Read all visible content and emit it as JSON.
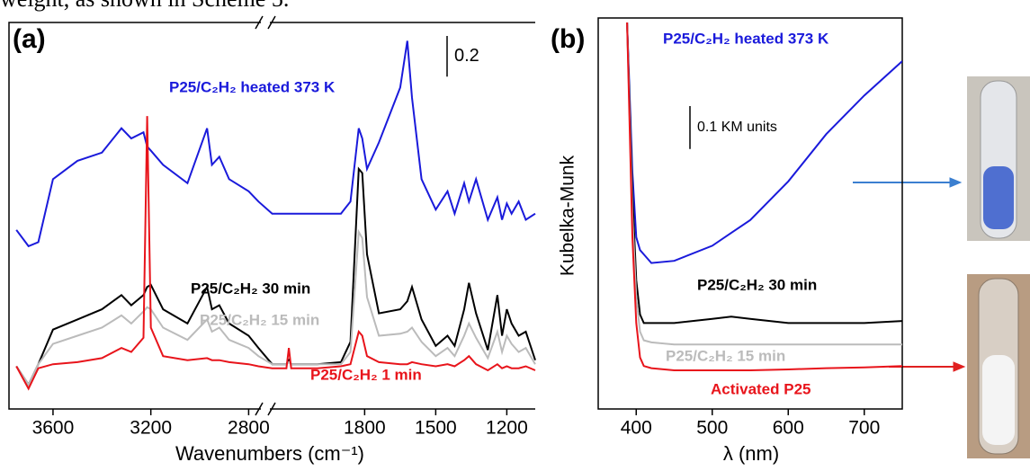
{
  "caption_fragment": "weight, as shown in Scheme 5.",
  "chart_data": [
    {
      "type": "line",
      "panel_label": "(a)",
      "x_label": "Wavenumbers (cm⁻¹)",
      "xlim": [
        3780,
        1080
      ],
      "axis_break": [
        2750,
        2200
      ],
      "ylim": [
        0,
        1.9
      ],
      "xticks": [
        3600,
        3200,
        2800,
        1800,
        1500,
        1200
      ],
      "scale_bar": 0.2,
      "x": [
        3750,
        3700,
        3660,
        3600,
        3500,
        3400,
        3320,
        3280,
        3230,
        3215,
        3200,
        3150,
        3050,
        2970,
        2950,
        2920,
        2880,
        2800,
        2760,
        2190,
        2130,
        2120,
        2110,
        2000,
        1900,
        1860,
        1825,
        1810,
        1790,
        1740,
        1650,
        1620,
        1600,
        1560,
        1500,
        1450,
        1420,
        1380,
        1360,
        1330,
        1280,
        1240,
        1220,
        1200,
        1180,
        1150,
        1120,
        1080
      ],
      "series": [
        {
          "name": "P25/C₂H₂ heated 373 K",
          "color": "#1a1adb",
          "values": [
            0.88,
            0.8,
            0.82,
            1.13,
            1.22,
            1.26,
            1.38,
            1.33,
            1.36,
            1.29,
            1.27,
            1.2,
            1.11,
            1.38,
            1.2,
            1.24,
            1.13,
            1.07,
            1.02,
            0.96,
            0.96,
            0.96,
            0.96,
            0.96,
            0.96,
            1.02,
            1.38,
            1.33,
            1.18,
            1.31,
            1.58,
            1.81,
            1.53,
            1.13,
            0.98,
            1.07,
            0.96,
            1.11,
            1.02,
            1.13,
            0.93,
            1.04,
            0.93,
            1.01,
            0.96,
            1.02,
            0.93,
            0.96
          ]
        },
        {
          "name": "P25/C₂H₂ 30 min",
          "color": "#000000",
          "values": [
            0.21,
            0.12,
            0.22,
            0.39,
            0.44,
            0.49,
            0.56,
            0.51,
            0.56,
            0.6,
            0.61,
            0.49,
            0.42,
            0.6,
            0.49,
            0.51,
            0.42,
            0.36,
            0.3,
            0.22,
            0.22,
            0.24,
            0.22,
            0.22,
            0.23,
            0.33,
            1.18,
            1.16,
            0.76,
            0.47,
            0.49,
            0.53,
            0.6,
            0.44,
            0.31,
            0.36,
            0.31,
            0.49,
            0.62,
            0.47,
            0.29,
            0.56,
            0.36,
            0.49,
            0.42,
            0.36,
            0.38,
            0.24
          ]
        },
        {
          "name": "P25/C₂H₂ 15 min",
          "color": "#bbbbbb",
          "values": [
            0.21,
            0.12,
            0.22,
            0.32,
            0.36,
            0.4,
            0.46,
            0.42,
            0.48,
            0.5,
            0.49,
            0.4,
            0.34,
            0.44,
            0.38,
            0.4,
            0.34,
            0.3,
            0.26,
            0.22,
            0.22,
            0.23,
            0.22,
            0.22,
            0.22,
            0.28,
            0.87,
            0.84,
            0.55,
            0.36,
            0.37,
            0.38,
            0.4,
            0.33,
            0.26,
            0.3,
            0.26,
            0.36,
            0.42,
            0.35,
            0.25,
            0.38,
            0.28,
            0.36,
            0.32,
            0.28,
            0.3,
            0.22
          ]
        },
        {
          "name": "P25/C₂H₂ 1 min",
          "color": "#e8141b",
          "values": [
            0.21,
            0.1,
            0.2,
            0.22,
            0.23,
            0.25,
            0.3,
            0.28,
            0.35,
            1.44,
            0.4,
            0.26,
            0.24,
            0.25,
            0.24,
            0.24,
            0.23,
            0.22,
            0.21,
            0.2,
            0.2,
            0.3,
            0.2,
            0.2,
            0.21,
            0.22,
            0.38,
            0.36,
            0.26,
            0.23,
            0.22,
            0.22,
            0.23,
            0.22,
            0.21,
            0.22,
            0.21,
            0.24,
            0.26,
            0.22,
            0.19,
            0.22,
            0.2,
            0.21,
            0.2,
            0.2,
            0.21,
            0.19
          ]
        }
      ]
    },
    {
      "type": "line",
      "panel_label": "(b)",
      "x_label": "λ (nm)",
      "y_label": "Kubelka-Munk",
      "xlim": [
        350,
        750
      ],
      "ylim": [
        0,
        0.9
      ],
      "xticks": [
        400,
        500,
        600,
        700
      ],
      "scale_bar": {
        "value": 0.1,
        "label": "0.1 KM units"
      },
      "x": [
        388,
        395,
        400,
        405,
        410,
        420,
        450,
        500,
        525,
        550,
        600,
        650,
        700,
        750
      ],
      "series": [
        {
          "name": "P25/C₂H₂ heated 373 K",
          "color": "#1a1adb",
          "values": [
            0.9,
            0.55,
            0.4,
            0.37,
            0.36,
            0.34,
            0.345,
            0.38,
            0.41,
            0.44,
            0.53,
            0.64,
            0.73,
            0.81
          ]
        },
        {
          "name": "P25/C₂H₂ 30 min",
          "color": "#000000",
          "values": [
            0.9,
            0.5,
            0.3,
            0.22,
            0.2,
            0.2,
            0.2,
            0.21,
            0.215,
            0.21,
            0.2,
            0.2,
            0.2,
            0.205
          ]
        },
        {
          "name": "P25/C₂H₂ 15 min",
          "color": "#bbbbbb",
          "values": [
            0.9,
            0.45,
            0.26,
            0.18,
            0.16,
            0.155,
            0.15,
            0.15,
            0.15,
            0.15,
            0.15,
            0.15,
            0.15,
            0.15
          ]
        },
        {
          "name": "Activated P25",
          "color": "#e8141b",
          "values": [
            0.9,
            0.4,
            0.2,
            0.12,
            0.1,
            0.095,
            0.09,
            0.09,
            0.09,
            0.09,
            0.092,
            0.095,
            0.097,
            0.1
          ]
        }
      ]
    }
  ]
}
